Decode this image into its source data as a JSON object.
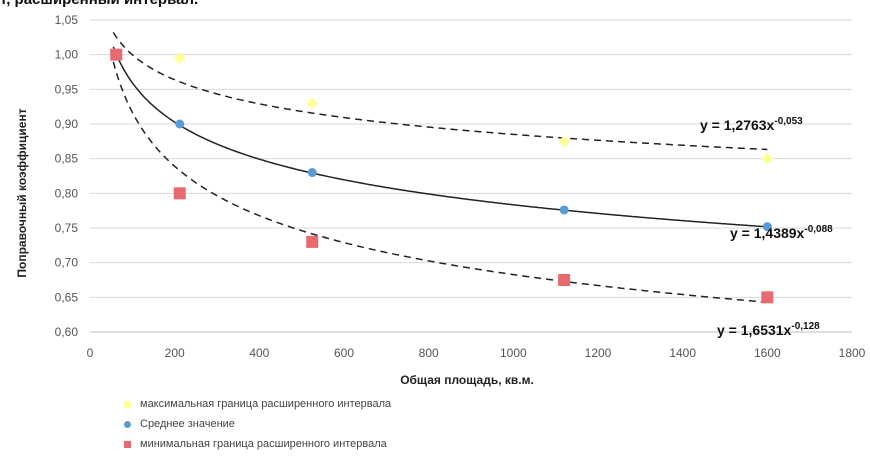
{
  "page_title": "т, расширенный интервал.",
  "chart_data": {
    "type": "scatter",
    "xlabel": "Общая площадь, кв.м.",
    "ylabel": "Поправочный коэффициент",
    "xlim": [
      0,
      1800
    ],
    "ylim": [
      0.6,
      1.05
    ],
    "x_ticks": [
      "0",
      "200",
      "400",
      "600",
      "800",
      "1000",
      "1200",
      "1400",
      "1600",
      "1800"
    ],
    "y_ticks": [
      "0,60",
      "0,65",
      "0,70",
      "0,75",
      "0,80",
      "0,85",
      "0,90",
      "0,95",
      "1,00",
      "1,05"
    ],
    "grid": "horizontal",
    "legend_position": "bottom",
    "series": [
      {
        "name": "максимальная граница расширенного интервала",
        "marker": "diamond",
        "color": "#ffff99",
        "points": [
          [
            62,
            1.0
          ],
          [
            212,
            0.995
          ],
          [
            525,
            0.93
          ],
          [
            1120,
            0.875
          ],
          [
            1600,
            0.85
          ]
        ],
        "trendline": {
          "equation_base": "y = 1,2763x",
          "equation_exp": "-0,053",
          "a": 1.2763,
          "b": -0.053,
          "style": "dashed"
        }
      },
      {
        "name": "Среднее значение",
        "marker": "circle",
        "color": "#5b9bd5",
        "points": [
          [
            62,
            1.0
          ],
          [
            212,
            0.9
          ],
          [
            525,
            0.83
          ],
          [
            1120,
            0.776
          ],
          [
            1600,
            0.752
          ]
        ],
        "trendline": {
          "equation_base": "y = 1,4389x",
          "equation_exp": "-0,088",
          "a": 1.4389,
          "b": -0.088,
          "style": "solid"
        }
      },
      {
        "name": "минимальная граница расширенного интервала",
        "marker": "square",
        "color": "#e8696e",
        "points": [
          [
            62,
            1.0
          ],
          [
            212,
            0.8
          ],
          [
            525,
            0.73
          ],
          [
            1120,
            0.675
          ],
          [
            1600,
            0.65
          ]
        ],
        "trendline": {
          "equation_base": "y = 1,6531x",
          "equation_exp": "-0,128",
          "a": 1.6531,
          "b": -0.128,
          "style": "dashed"
        }
      }
    ]
  }
}
